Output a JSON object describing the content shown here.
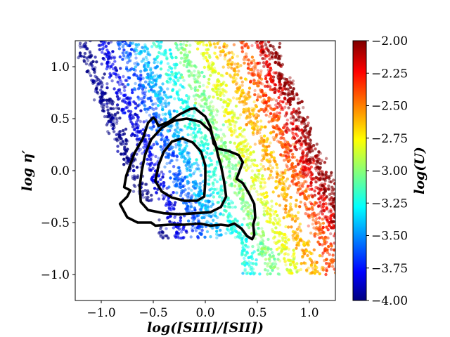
{
  "chart_data": {
    "type": "scatter",
    "title": "",
    "xlabel": "log([SIII]/[SII])",
    "ylabel": "log η′",
    "xlim": [
      -1.25,
      1.25
    ],
    "ylim": [
      -1.25,
      1.25
    ],
    "x_ticks": [
      -1.0,
      -0.5,
      0.0,
      0.5,
      1.0
    ],
    "x_tick_labels": [
      "−1.0",
      "−0.5",
      "0.0",
      "0.5",
      "1.0"
    ],
    "y_ticks": [
      -1.0,
      -0.5,
      0.0,
      0.5,
      1.0
    ],
    "y_tick_labels": [
      "−1.0",
      "−0.5",
      "0.0",
      "0.5",
      "1.0"
    ],
    "colorbar": {
      "label": "log(U)",
      "range": [
        -4.0,
        -2.0
      ],
      "ticks": [
        -4.0,
        -3.75,
        -3.5,
        -3.25,
        -3.0,
        -2.75,
        -2.5,
        -2.25,
        -2.0
      ],
      "tick_labels": [
        "−4.00",
        "−3.75",
        "−3.50",
        "−3.25",
        "−3.00",
        "−2.75",
        "−2.50",
        "−2.25",
        "−2.00"
      ],
      "colormap": "jet",
      "colormap_stops": [
        "#00007f",
        "#0000ff",
        "#00ffff",
        "#ffff00",
        "#ff0000",
        "#7f0000"
      ]
    },
    "scatter_model": {
      "description": "model grid points colored by log(U); band shifts to larger x as log(U) increases",
      "points_per_level": 420,
      "logU_levels": [
        -4.0,
        -3.8,
        -3.6,
        -3.4,
        -3.2,
        -3.0,
        -2.8,
        -2.6,
        -2.4,
        -2.2,
        -2.0
      ],
      "center_x_at_logU": [
        -0.75,
        -0.55,
        -0.35,
        -0.2,
        0.0,
        0.2,
        0.4,
        0.6,
        0.8,
        0.95,
        1.05
      ],
      "band_slope": -0.9,
      "y_range": [
        -1.0,
        1.25
      ]
    },
    "contours": [
      {
        "name": "outer",
        "points": [
          [
            -0.82,
            -0.32
          ],
          [
            -0.75,
            -0.45
          ],
          [
            -0.65,
            -0.5
          ],
          [
            -0.52,
            -0.5
          ],
          [
            -0.48,
            -0.53
          ],
          [
            -0.35,
            -0.52
          ],
          [
            -0.2,
            -0.52
          ],
          [
            -0.05,
            -0.51
          ],
          [
            0.05,
            -0.53
          ],
          [
            0.15,
            -0.52
          ],
          [
            0.22,
            -0.53
          ],
          [
            0.28,
            -0.51
          ],
          [
            0.35,
            -0.56
          ],
          [
            0.4,
            -0.63
          ],
          [
            0.45,
            -0.66
          ],
          [
            0.47,
            -0.62
          ],
          [
            0.46,
            -0.52
          ],
          [
            0.48,
            -0.45
          ],
          [
            0.47,
            -0.32
          ],
          [
            0.42,
            -0.22
          ],
          [
            0.36,
            -0.12
          ],
          [
            0.3,
            -0.08
          ],
          [
            0.33,
            0.0
          ],
          [
            0.36,
            0.08
          ],
          [
            0.32,
            0.15
          ],
          [
            0.22,
            0.19
          ],
          [
            0.12,
            0.21
          ],
          [
            0.08,
            0.26
          ],
          [
            0.05,
            0.42
          ],
          [
            0.0,
            0.52
          ],
          [
            -0.1,
            0.6
          ],
          [
            -0.15,
            0.59
          ],
          [
            -0.25,
            0.54
          ],
          [
            -0.35,
            0.47
          ],
          [
            -0.45,
            0.43
          ],
          [
            -0.48,
            0.49
          ],
          [
            -0.5,
            0.51
          ],
          [
            -0.55,
            0.46
          ],
          [
            -0.6,
            0.31
          ],
          [
            -0.68,
            0.17
          ],
          [
            -0.76,
            -0.05
          ],
          [
            -0.78,
            -0.16
          ],
          [
            -0.72,
            -0.19
          ],
          [
            -0.75,
            -0.25
          ],
          [
            -0.82,
            -0.32
          ]
        ]
      },
      {
        "name": "middle",
        "points": [
          [
            -0.62,
            -0.3
          ],
          [
            -0.55,
            -0.38
          ],
          [
            -0.4,
            -0.41
          ],
          [
            -0.25,
            -0.42
          ],
          [
            -0.1,
            -0.41
          ],
          [
            0.05,
            -0.4
          ],
          [
            0.15,
            -0.35
          ],
          [
            0.2,
            -0.25
          ],
          [
            0.18,
            -0.1
          ],
          [
            0.15,
            0.05
          ],
          [
            0.12,
            0.15
          ],
          [
            0.1,
            0.25
          ],
          [
            0.05,
            0.38
          ],
          [
            -0.05,
            0.47
          ],
          [
            -0.18,
            0.5
          ],
          [
            -0.3,
            0.48
          ],
          [
            -0.42,
            0.41
          ],
          [
            -0.52,
            0.3
          ],
          [
            -0.58,
            0.15
          ],
          [
            -0.61,
            0.0
          ],
          [
            -0.63,
            -0.15
          ],
          [
            -0.62,
            -0.3
          ]
        ]
      },
      {
        "name": "inner",
        "points": [
          [
            -0.48,
            -0.1
          ],
          [
            -0.42,
            -0.2
          ],
          [
            -0.32,
            -0.26
          ],
          [
            -0.2,
            -0.29
          ],
          [
            -0.08,
            -0.29
          ],
          [
            -0.01,
            -0.25
          ],
          [
            0.0,
            -0.1
          ],
          [
            0.0,
            0.05
          ],
          [
            -0.04,
            0.18
          ],
          [
            -0.12,
            0.27
          ],
          [
            -0.22,
            0.31
          ],
          [
            -0.32,
            0.28
          ],
          [
            -0.4,
            0.18
          ],
          [
            -0.45,
            0.05
          ],
          [
            -0.48,
            -0.1
          ]
        ]
      }
    ]
  }
}
